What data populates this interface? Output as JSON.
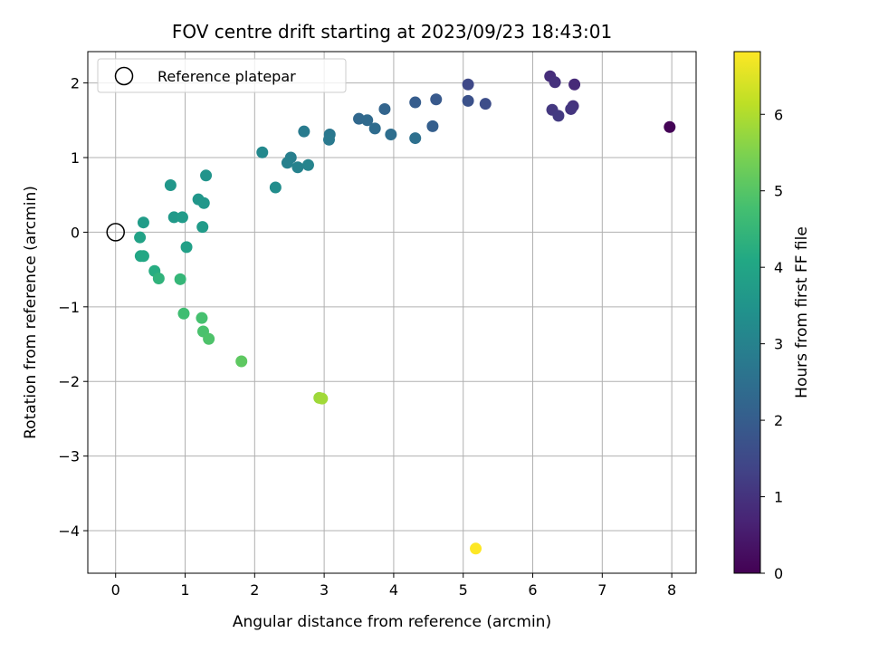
{
  "chart_data": {
    "type": "scatter",
    "title": "FOV centre drift starting at 2023/09/23 18:43:01",
    "xlabel": "Angular distance from reference (arcmin)",
    "ylabel": "Rotation from reference (arcmin)",
    "xlim": [
      -0.4,
      8.35
    ],
    "ylim": [
      -4.57,
      2.42
    ],
    "xticks": [
      0,
      1,
      2,
      3,
      4,
      5,
      6,
      7,
      8
    ],
    "yticks": [
      2,
      1,
      0,
      -1,
      -2,
      -3,
      -4
    ],
    "xtick_labels": [
      "0",
      "1",
      "2",
      "3",
      "4",
      "5",
      "6",
      "7",
      "8"
    ],
    "ytick_labels": [
      "2",
      "1",
      "0",
      "−1",
      "−2",
      "−3",
      "−4"
    ],
    "grid": true,
    "legend": {
      "placement": "top-left",
      "entries": [
        {
          "label": "Reference platepar",
          "marker": "open-circle"
        }
      ]
    },
    "reference_point": {
      "x": 0,
      "y": 0
    },
    "colorbar": {
      "label": "Hours from first FF file",
      "range": [
        0,
        6.82
      ],
      "ticks": [
        0,
        1,
        2,
        3,
        4,
        5,
        6
      ],
      "tick_labels": [
        "0",
        "1",
        "2",
        "3",
        "4",
        "5",
        "6"
      ],
      "colormap": "viridis"
    },
    "points": [
      {
        "x": 7.97,
        "y": 1.41,
        "c": 0.05
      },
      {
        "x": 6.6,
        "y": 1.98,
        "c": 0.8
      },
      {
        "x": 6.25,
        "y": 2.09,
        "c": 0.9
      },
      {
        "x": 6.32,
        "y": 2.01,
        "c": 0.95
      },
      {
        "x": 6.58,
        "y": 1.69,
        "c": 1.0
      },
      {
        "x": 6.55,
        "y": 1.65,
        "c": 1.05
      },
      {
        "x": 6.28,
        "y": 1.64,
        "c": 1.1
      },
      {
        "x": 6.37,
        "y": 1.56,
        "c": 1.15
      },
      {
        "x": 5.07,
        "y": 1.98,
        "c": 1.5
      },
      {
        "x": 5.32,
        "y": 1.72,
        "c": 1.6
      },
      {
        "x": 5.07,
        "y": 1.76,
        "c": 1.7
      },
      {
        "x": 4.61,
        "y": 1.78,
        "c": 1.9
      },
      {
        "x": 4.31,
        "y": 1.74,
        "c": 2.0
      },
      {
        "x": 4.56,
        "y": 1.42,
        "c": 2.05
      },
      {
        "x": 3.87,
        "y": 1.65,
        "c": 2.2
      },
      {
        "x": 3.5,
        "y": 1.52,
        "c": 2.3
      },
      {
        "x": 3.62,
        "y": 1.5,
        "c": 2.35
      },
      {
        "x": 3.73,
        "y": 1.39,
        "c": 2.4
      },
      {
        "x": 3.96,
        "y": 1.31,
        "c": 2.45
      },
      {
        "x": 4.31,
        "y": 1.26,
        "c": 2.5
      },
      {
        "x": 3.08,
        "y": 1.31,
        "c": 2.7
      },
      {
        "x": 3.07,
        "y": 1.24,
        "c": 2.75
      },
      {
        "x": 2.71,
        "y": 1.35,
        "c": 2.8
      },
      {
        "x": 2.52,
        "y": 1.0,
        "c": 2.9
      },
      {
        "x": 2.47,
        "y": 0.93,
        "c": 2.95
      },
      {
        "x": 2.62,
        "y": 0.87,
        "c": 3.0
      },
      {
        "x": 2.77,
        "y": 0.9,
        "c": 3.05
      },
      {
        "x": 2.11,
        "y": 1.07,
        "c": 3.2
      },
      {
        "x": 2.3,
        "y": 0.6,
        "c": 3.3
      },
      {
        "x": 1.3,
        "y": 0.76,
        "c": 3.5
      },
      {
        "x": 1.19,
        "y": 0.44,
        "c": 3.55
      },
      {
        "x": 1.27,
        "y": 0.39,
        "c": 3.6
      },
      {
        "x": 0.79,
        "y": 0.63,
        "c": 3.6
      },
      {
        "x": 0.84,
        "y": 0.2,
        "c": 3.65
      },
      {
        "x": 0.96,
        "y": 0.2,
        "c": 3.7
      },
      {
        "x": 1.25,
        "y": 0.07,
        "c": 3.7
      },
      {
        "x": 0.4,
        "y": 0.13,
        "c": 3.75
      },
      {
        "x": 1.02,
        "y": -0.2,
        "c": 3.85
      },
      {
        "x": 0.35,
        "y": -0.07,
        "c": 3.9
      },
      {
        "x": 0.36,
        "y": -0.32,
        "c": 4.0
      },
      {
        "x": 0.4,
        "y": -0.32,
        "c": 4.05
      },
      {
        "x": 0.56,
        "y": -0.52,
        "c": 4.2
      },
      {
        "x": 0.62,
        "y": -0.62,
        "c": 4.4
      },
      {
        "x": 0.93,
        "y": -0.63,
        "c": 4.5
      },
      {
        "x": 0.98,
        "y": -1.09,
        "c": 4.7
      },
      {
        "x": 1.24,
        "y": -1.15,
        "c": 4.8
      },
      {
        "x": 1.26,
        "y": -1.33,
        "c": 4.85
      },
      {
        "x": 1.34,
        "y": -1.43,
        "c": 4.9
      },
      {
        "x": 1.81,
        "y": -1.73,
        "c": 5.1
      },
      {
        "x": 2.93,
        "y": -2.22,
        "c": 5.8
      },
      {
        "x": 2.97,
        "y": -2.23,
        "c": 5.85
      },
      {
        "x": 5.18,
        "y": -4.24,
        "c": 6.82
      }
    ]
  }
}
